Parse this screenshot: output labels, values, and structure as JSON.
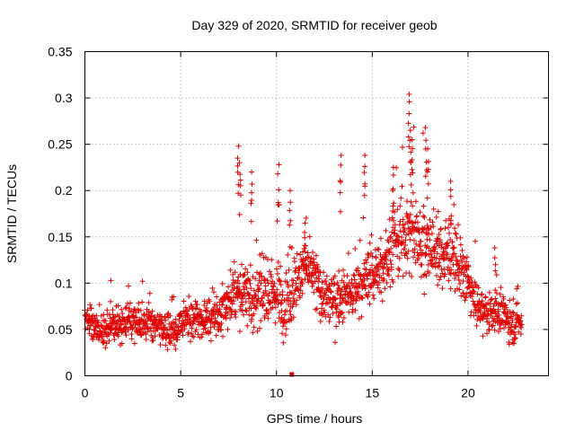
{
  "chart_data": {
    "type": "scatter",
    "title": "Day 329 of 2020, SRMTID for receiver geob",
    "xlabel": "GPS time / hours",
    "ylabel": "SRMTID / TECUs",
    "xlim": [
      0,
      24.2
    ],
    "ylim": [
      0,
      0.35
    ],
    "grid": true,
    "xticks": [
      0,
      5,
      10,
      15,
      20
    ],
    "xtick_labels": [
      "0",
      "5",
      "10",
      "15",
      "20"
    ],
    "yticks": [
      0,
      0.05,
      0.1,
      0.15,
      0.2,
      0.25,
      0.3,
      0.35
    ],
    "ytick_labels": [
      "0",
      "0.05",
      "0.1",
      "0.15",
      "0.2",
      "0.25",
      "0.3",
      "0.35"
    ],
    "marker": "plus",
    "color": "#e00000",
    "series": [
      {
        "name": "SRMTID",
        "profile": {
          "hour": [
            0,
            0.5,
            1,
            1.5,
            2,
            2.5,
            3,
            3.5,
            4,
            4.5,
            5,
            5.5,
            6,
            6.5,
            7,
            7.5,
            8,
            8.5,
            9,
            9.5,
            10,
            10.5,
            11,
            11.5,
            12,
            12.5,
            13,
            13.5,
            14,
            14.5,
            15,
            15.5,
            16,
            16.5,
            17,
            17.5,
            18,
            18.5,
            19,
            19.5,
            20,
            20.5,
            21,
            21.5,
            22,
            22.5,
            22.8
          ],
          "median": [
            0.065,
            0.05,
            0.052,
            0.055,
            0.055,
            0.057,
            0.06,
            0.055,
            0.052,
            0.048,
            0.055,
            0.06,
            0.062,
            0.062,
            0.068,
            0.08,
            0.09,
            0.085,
            0.085,
            0.088,
            0.09,
            0.08,
            0.1,
            0.12,
            0.105,
            0.085,
            0.08,
            0.085,
            0.09,
            0.1,
            0.11,
            0.115,
            0.14,
            0.15,
            0.16,
            0.15,
            0.14,
            0.13,
            0.135,
            0.12,
            0.1,
            0.075,
            0.065,
            0.07,
            0.06,
            0.055,
            0.06
          ],
          "spread": [
            0.012,
            0.015,
            0.015,
            0.015,
            0.015,
            0.016,
            0.016,
            0.015,
            0.015,
            0.016,
            0.017,
            0.017,
            0.018,
            0.018,
            0.02,
            0.025,
            0.03,
            0.03,
            0.028,
            0.028,
            0.03,
            0.03,
            0.028,
            0.025,
            0.025,
            0.025,
            0.025,
            0.025,
            0.025,
            0.025,
            0.025,
            0.028,
            0.03,
            0.035,
            0.04,
            0.04,
            0.035,
            0.03,
            0.03,
            0.03,
            0.025,
            0.02,
            0.017,
            0.017,
            0.018,
            0.018,
            0.015
          ]
        },
        "peaks": [
          {
            "x": 8.0,
            "y": 0.248
          },
          {
            "x": 8.1,
            "y": 0.23
          },
          {
            "x": 8.7,
            "y": 0.22
          },
          {
            "x": 10.1,
            "y": 0.228
          },
          {
            "x": 10.7,
            "y": 0.2
          },
          {
            "x": 11.5,
            "y": 0.165
          },
          {
            "x": 13.35,
            "y": 0.238
          },
          {
            "x": 14.6,
            "y": 0.238
          },
          {
            "x": 16.1,
            "y": 0.225
          },
          {
            "x": 16.9,
            "y": 0.304
          },
          {
            "x": 17.0,
            "y": 0.265
          },
          {
            "x": 17.1,
            "y": 0.255
          },
          {
            "x": 17.8,
            "y": 0.268
          },
          {
            "x": 17.9,
            "y": 0.245
          },
          {
            "x": 19.1,
            "y": 0.21
          },
          {
            "x": 21.4,
            "y": 0.138
          }
        ],
        "outliers": [
          {
            "x": 10.8,
            "y": 0.0
          }
        ]
      }
    ]
  }
}
